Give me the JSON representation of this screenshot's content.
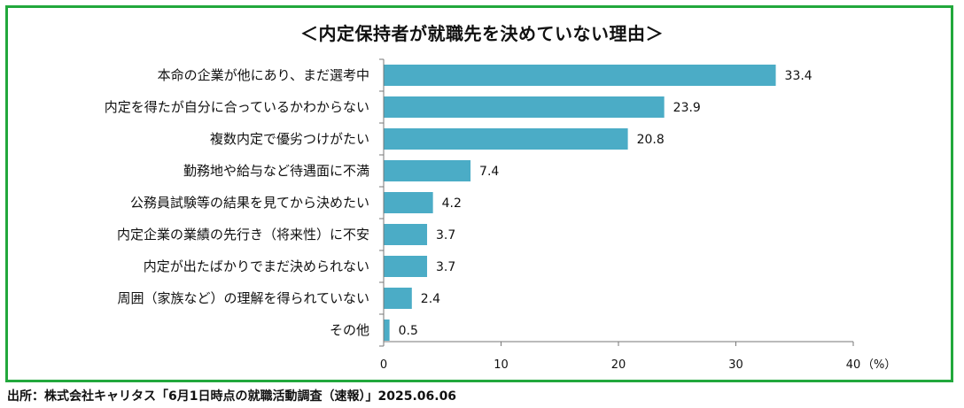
{
  "title": "＜内定保持者が就職先を決めていない理由＞",
  "source": "出所：株式会社キャリタス「6月1日時点の就職活動調査（速報）」2025.06.06",
  "colors": {
    "bar": "#4bacc6",
    "frame": "#22a83c"
  },
  "chart_data": {
    "type": "bar",
    "orientation": "horizontal",
    "categories": [
      "本命の企業が他にあり、まだ選考中",
      "内定を得たが自分に合っているかわからない",
      "複数内定で優劣つけがたい",
      "勤務地や給与など待遇面に不満",
      "公務員試験等の結果を見てから決めたい",
      "内定企業の業績の先行き（将来性）に不安",
      "内定が出たばかりでまだ決められない",
      "周囲（家族など）の理解を得られていない",
      "その他"
    ],
    "values": [
      33.4,
      23.9,
      20.8,
      7.4,
      4.2,
      3.7,
      3.7,
      2.4,
      0.5
    ],
    "value_labels": [
      "33.4",
      "23.9",
      "20.8",
      "7.4",
      "4.2",
      "3.7",
      "3.7",
      "2.4",
      "0.5"
    ],
    "xlim": [
      0,
      40
    ],
    "xticks": [
      0,
      10,
      20,
      30,
      40
    ],
    "tick_labels": [
      "0",
      "10",
      "20",
      "30",
      "40"
    ],
    "unit_label": "（%）",
    "grid": false
  }
}
